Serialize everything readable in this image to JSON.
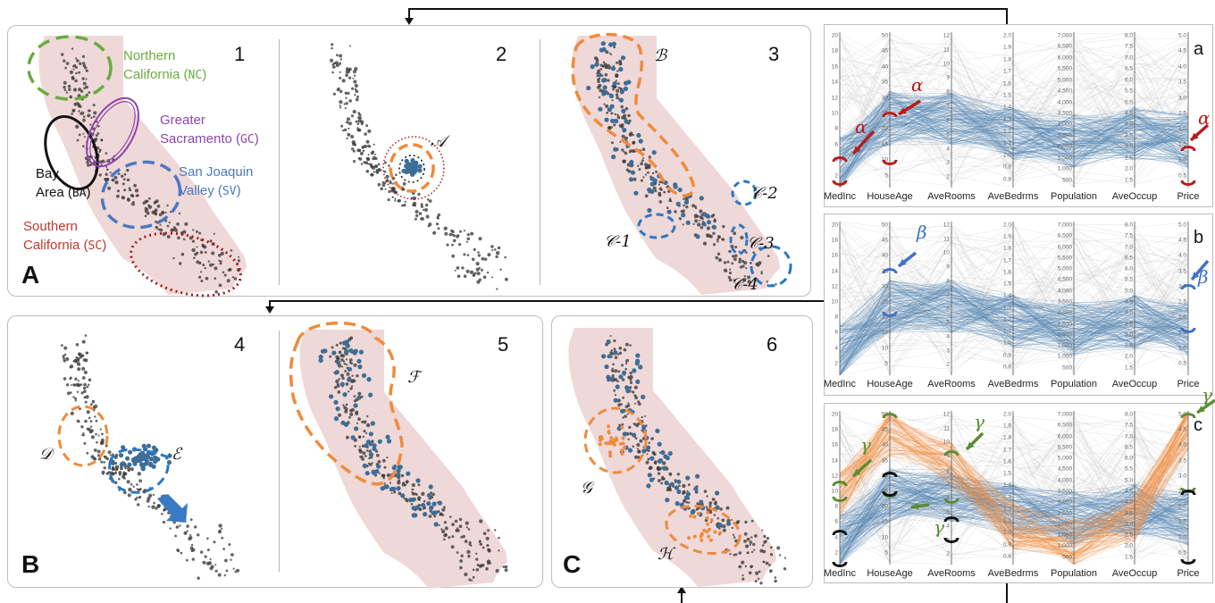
{
  "panels": {
    "A": {
      "letter": "A",
      "subs": [
        "1",
        "2",
        "3"
      ]
    },
    "B": {
      "letter": "B",
      "subs": [
        "4",
        "5"
      ]
    },
    "C": {
      "letter": "C",
      "subs": [
        "6"
      ]
    }
  },
  "regions": [
    {
      "key": "nc",
      "line1": "Northern",
      "line2": "California (",
      "code": "NC",
      "close": ")",
      "color": "#6aab3f"
    },
    {
      "key": "gc",
      "line1": "Greater",
      "line2": "Sacramento (",
      "code": "GC",
      "close": ")",
      "color": "#8e44ad"
    },
    {
      "key": "sv",
      "line1": "San Joaquin",
      "line2": "Valley (",
      "code": "SV",
      "close": ")",
      "color": "#4a78c2"
    },
    {
      "key": "ba",
      "line1": "Bay",
      "line2": "Area (",
      "code": "BA",
      "close": ")",
      "color": "#111111"
    },
    {
      "key": "sc",
      "line1": "Southern",
      "line2": "California (",
      "code": "SC",
      "close": ")",
      "color": "#c0392b"
    }
  ],
  "clusters": {
    "A": "𝒜",
    "B": "ℬ",
    "C1": "𝒞-1",
    "C2": "𝒞-2",
    "C3": "𝒞-3",
    "C4": "𝒞-4",
    "D": "𝒟",
    "E": "ℰ",
    "F": "ℱ",
    "G": "𝒢",
    "H": "ℋ"
  },
  "pc": {
    "axes": [
      "MedInc",
      "HouseAge",
      "AveRooms",
      "AveBedrms",
      "Population",
      "AveOccup",
      "Price"
    ],
    "ticks": {
      "MedInc": [
        "20",
        "18",
        "16",
        "14",
        "12",
        "10",
        "8",
        "6",
        "4",
        "2"
      ],
      "HouseAge": [
        "50",
        "45",
        "40",
        "35",
        "30",
        "25",
        "20",
        "15",
        "10",
        "5"
      ],
      "AveRooms": [
        "12",
        "11",
        "10",
        "9",
        "8",
        "7",
        "6",
        "5",
        "4",
        "3",
        "2"
      ],
      "AveBedrms": [
        "2.0",
        "1.9",
        "1.8",
        "1.7",
        "1.6",
        "1.5",
        "1.4",
        "1.3",
        "1.2",
        "1.1",
        "1.0",
        "0.9",
        "0.8"
      ],
      "Population": [
        "7,000",
        "6,500",
        "6,000",
        "5,500",
        "5,000",
        "4,500",
        "4,000",
        "3,500",
        "3,000",
        "2,500",
        "2,000",
        "1,500",
        "1,000",
        "500"
      ],
      "AveOccup": [
        "8.0",
        "7.5",
        "7.0",
        "6.5",
        "6.0",
        "5.5",
        "5.0",
        "4.5",
        "4.0",
        "3.5",
        "3.0",
        "2.5",
        "2.0",
        "1.5"
      ],
      "Price": [
        "5.0",
        "4.5",
        "4.0",
        "3.5",
        "3.0",
        "2.5",
        "2.0",
        "1.5",
        "1.0",
        "0.5"
      ]
    },
    "letters": [
      "a",
      "b",
      "c"
    ],
    "greek": {
      "a": "α",
      "b": "β",
      "c": "γ"
    }
  },
  "colors": {
    "map": "#efd8d8",
    "point": "#3d3d3d",
    "blue_point": "#3c6e98",
    "orange": "#f08a3c",
    "blue": "#2a78c4",
    "pc_line": "#4a7fb0",
    "pc_orange": "#f08a3c",
    "red": "#b81c1c",
    "blue_arrow": "#3f72c4",
    "green": "#5a8d32"
  }
}
